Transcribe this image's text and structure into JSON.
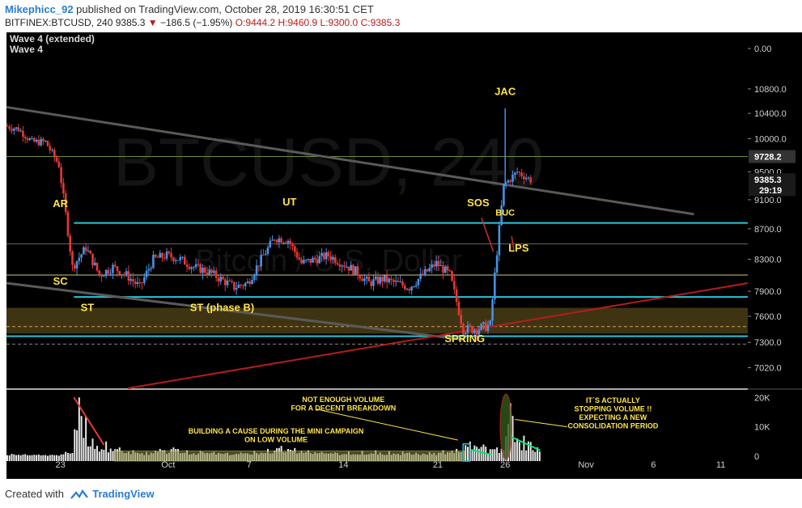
{
  "header": {
    "publisher": "Mikephicc_92",
    "published_text": "published on TradingView.com, October 28, 2019 16:30:51 CET",
    "symbol": "BITFINEX:BTCUSD, 240",
    "last": "9385.3",
    "change": "−186.5 (−1.95%)",
    "open": "O:9444.2",
    "high": "H:9460.9",
    "low": "L:9300.0",
    "close": "C:9385.3"
  },
  "footer": {
    "created_with": "Created with",
    "brand": "TradingView"
  },
  "colors": {
    "up": "#4a90e2",
    "down": "#e53935",
    "cyan": "#26c6da",
    "olive": "#c8cc80",
    "annotation": "#ffe44a",
    "pane": "#000000",
    "trend_gray": "#5a5a5a",
    "trend_red": "#b71c1c",
    "price_highlight": "#333333",
    "green": "#00e676"
  },
  "chart_data": {
    "type": "candlestick",
    "title": "BITFINEX:BTCUSD, 240",
    "watermark": "BTCUSD, 240",
    "watermark_sub": "Bitcoin / U.S. Dollar",
    "indicator_labels": [
      "Wave 4 (extended)",
      "Wave 4"
    ],
    "xlim": [
      "2019-09-19",
      "2019-11-13"
    ],
    "ylim": [
      6800,
      11100
    ],
    "y_scale": "log",
    "grid": false,
    "x_ticks": [
      "23",
      "Oct",
      "7",
      "14",
      "21",
      "26",
      "Nov",
      "6",
      "11"
    ],
    "y_ticks": [
      "0.00",
      "10800.0",
      "10400.0",
      "10000.0",
      "9500.0",
      "9100.0",
      "8700.0",
      "8300.0",
      "7900.0",
      "7600.0",
      "7300.0",
      "7020.0"
    ],
    "price_labels": {
      "high_line": "9728.2",
      "last": "9385.3",
      "countdown": "29:19"
    },
    "series": [
      {
        "name": "BTCUSD",
        "kind": "close_path",
        "x": [
          "2019-09-19",
          "2019-09-20",
          "2019-09-21",
          "2019-09-22",
          "2019-09-23",
          "2019-09-24",
          "2019-09-25",
          "2019-09-26",
          "2019-09-27",
          "2019-09-28",
          "2019-09-29",
          "2019-09-30",
          "2019-10-01",
          "2019-10-02",
          "2019-10-03",
          "2019-10-04",
          "2019-10-05",
          "2019-10-06",
          "2019-10-07",
          "2019-10-08",
          "2019-10-09",
          "2019-10-10",
          "2019-10-11",
          "2019-10-12",
          "2019-10-13",
          "2019-10-14",
          "2019-10-15",
          "2019-10-16",
          "2019-10-17",
          "2019-10-18",
          "2019-10-19",
          "2019-10-20",
          "2019-10-21",
          "2019-10-22",
          "2019-10-23",
          "2019-10-24",
          "2019-10-25",
          "2019-10-26",
          "2019-10-27",
          "2019-10-28"
        ],
        "y": [
          10200,
          10150,
          9950,
          9950,
          9600,
          8200,
          8450,
          8100,
          8200,
          8100,
          7950,
          8300,
          8350,
          8300,
          8200,
          8150,
          8050,
          7950,
          8000,
          8300,
          8580,
          8550,
          8250,
          8300,
          8350,
          8250,
          8150,
          8000,
          8050,
          8000,
          7950,
          8100,
          8250,
          8100,
          7450,
          7450,
          7500,
          9300,
          9500,
          9385
        ]
      }
    ],
    "volume": {
      "ylim": [
        0,
        22000
      ],
      "ticks": [
        "20K",
        "10K",
        "0"
      ],
      "x": [
        "2019-09-19",
        "2019-09-20",
        "2019-09-21",
        "2019-09-22",
        "2019-09-23",
        "2019-09-24",
        "2019-09-25",
        "2019-09-26",
        "2019-09-27",
        "2019-09-28",
        "2019-09-29",
        "2019-09-30",
        "2019-10-01",
        "2019-10-02",
        "2019-10-03",
        "2019-10-04",
        "2019-10-05",
        "2019-10-06",
        "2019-10-07",
        "2019-10-08",
        "2019-10-09",
        "2019-10-10",
        "2019-10-11",
        "2019-10-12",
        "2019-10-13",
        "2019-10-14",
        "2019-10-15",
        "2019-10-16",
        "2019-10-17",
        "2019-10-18",
        "2019-10-19",
        "2019-10-20",
        "2019-10-21",
        "2019-10-22",
        "2019-10-23",
        "2019-10-24",
        "2019-10-25",
        "2019-10-26",
        "2019-10-27",
        "2019-10-28"
      ],
      "values": [
        800,
        700,
        600,
        500,
        1500,
        20000,
        6000,
        5000,
        3000,
        2000,
        1500,
        2500,
        3000,
        2000,
        1800,
        1500,
        1200,
        1300,
        1800,
        2500,
        3500,
        2800,
        2000,
        1500,
        1300,
        1600,
        1800,
        2000,
        1700,
        1600,
        1200,
        1400,
        2000,
        2500,
        5000,
        4000,
        3000,
        18000,
        7000,
        3000
      ]
    },
    "levels": [
      {
        "name": "high_line",
        "value": 9728.2,
        "color": "#6a8f3a"
      },
      {
        "name": "ar_line",
        "value": 8780,
        "color": "#26c6da"
      },
      {
        "name": "mid_line",
        "value": 8500,
        "color": "#666666"
      },
      {
        "name": "olive_line",
        "value": 8100,
        "color": "#c8cc80"
      },
      {
        "name": "st_line",
        "value": 7830,
        "color": "#26c6da"
      },
      {
        "name": "low_line",
        "value": 7370,
        "color": "#26c6da"
      }
    ],
    "zone": {
      "from": 7400,
      "to": 7700,
      "color": "#5a4a1a"
    },
    "annotations": [
      {
        "text": "AR",
        "date": "2019-09-23",
        "price": 9000
      },
      {
        "text": "SC",
        "date": "2019-09-23",
        "price": 7980
      },
      {
        "text": "ST",
        "date": "2019-09-25",
        "price": 7660
      },
      {
        "text": "ST (phase B)",
        "date": "2019-10-05",
        "price": 7660
      },
      {
        "text": "UT",
        "date": "2019-10-10",
        "price": 9020
      },
      {
        "text": "SOS",
        "date": "2019-10-24",
        "price": 9010
      },
      {
        "text": "JAC",
        "date": "2019-10-26",
        "price": 10700
      },
      {
        "text": "BUC",
        "date": "2019-10-26",
        "price": 8880
      },
      {
        "text": "LPS",
        "date": "2019-10-27",
        "price": 8400
      },
      {
        "text": "SPRING",
        "date": "2019-10-23",
        "price": 7300
      }
    ],
    "volume_notes": [
      "NOT ENOUGH VOLUME\nFOR A DECENT BREAKDOWN",
      "BUILDING A CAUSE DURING THE MINI CAMPAIGN\nON LOW VOLUME",
      "IT´S ACTUALLY\nSTOPPING VOLUME !!\nEXPECTING A NEW\nCONSOLIDATION PERIOD"
    ]
  }
}
